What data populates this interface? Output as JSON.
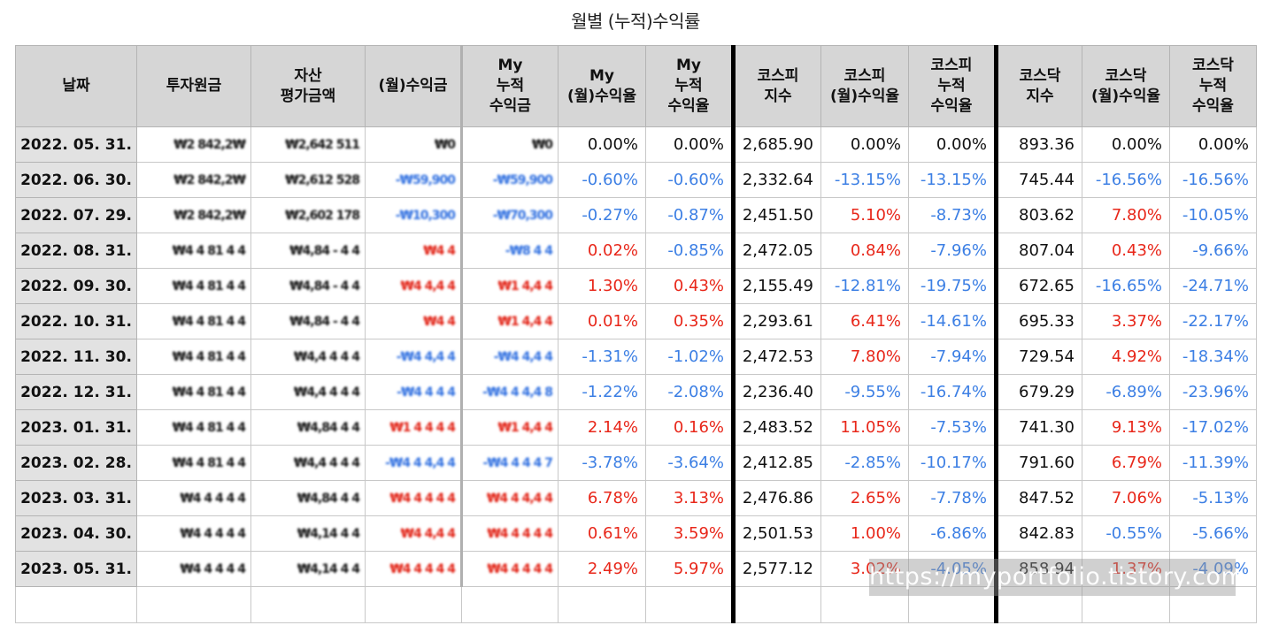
{
  "title": "월별 (누적)수익률",
  "headers": {
    "date": "날짜",
    "principal": "투자원금",
    "asset_value": [
      "자산",
      "평가금액"
    ],
    "monthly_profit": "(월)수익금",
    "my_cum_profit": [
      "My",
      "누적",
      "수익금"
    ],
    "my_monthly_rate": [
      "My",
      "(월)수익율"
    ],
    "my_cum_rate": [
      "My",
      "누적",
      "수익율"
    ],
    "kospi_index": [
      "코스피",
      "지수"
    ],
    "kospi_monthly": [
      "코스피",
      "(월)수익율"
    ],
    "kospi_cum": [
      "코스피",
      "누적",
      "수익율"
    ],
    "kosdaq_index": [
      "코스닥",
      "지수"
    ],
    "kosdaq_monthly": [
      "코스닥",
      "(월)수익율"
    ],
    "kosdaq_cum": [
      "코스닥",
      "누적",
      "수익율"
    ]
  },
  "rows": [
    {
      "date": "2022. 05. 31.",
      "principal": "₩2 842,2₩",
      "asset": "₩2,642 511",
      "profit": "₩0",
      "cum_profit": "₩0",
      "my_monthly": "0.00%",
      "my_cum": "0.00%",
      "kospi": "2,685.90",
      "kospi_m": "0.00%",
      "kospi_c": "0.00%",
      "kosdaq": "893.36",
      "kosdaq_m": "0.00%",
      "kosdaq_c": "0.00%"
    },
    {
      "date": "2022. 06. 30.",
      "principal": "₩2 842,2₩",
      "asset": "₩2,612 528",
      "profit": "-₩59,900",
      "cum_profit": "-₩59,900",
      "my_monthly": "-0.60%",
      "my_cum": "-0.60%",
      "kospi": "2,332.64",
      "kospi_m": "-13.15%",
      "kospi_c": "-13.15%",
      "kosdaq": "745.44",
      "kosdaq_m": "-16.56%",
      "kosdaq_c": "-16.56%"
    },
    {
      "date": "2022. 07. 29.",
      "principal": "₩2 842,2₩",
      "asset": "₩2,602 178",
      "profit": "-₩10,300",
      "cum_profit": "-₩70,300",
      "my_monthly": "-0.27%",
      "my_cum": "-0.87%",
      "kospi": "2,451.50",
      "kospi_m": "5.10%",
      "kospi_c": "-8.73%",
      "kosdaq": "803.62",
      "kosdaq_m": "7.80%",
      "kosdaq_c": "-10.05%"
    },
    {
      "date": "2022. 08. 31.",
      "principal": "₩4 4 81 4 4",
      "asset": "₩4,84 - 4 4",
      "profit": "₩4 4",
      "cum_profit": "-₩8 4 4",
      "my_monthly": "0.02%",
      "my_cum": "-0.85%",
      "kospi": "2,472.05",
      "kospi_m": "0.84%",
      "kospi_c": "-7.96%",
      "kosdaq": "807.04",
      "kosdaq_m": "0.43%",
      "kosdaq_c": "-9.66%"
    },
    {
      "date": "2022. 09. 30.",
      "principal": "₩4 4 81 4 4",
      "asset": "₩4,84 - 4 4",
      "profit": "₩4 4,4 4",
      "cum_profit": "₩1 4,4 4",
      "my_monthly": "1.30%",
      "my_cum": "0.43%",
      "kospi": "2,155.49",
      "kospi_m": "-12.81%",
      "kospi_c": "-19.75%",
      "kosdaq": "672.65",
      "kosdaq_m": "-16.65%",
      "kosdaq_c": "-24.71%"
    },
    {
      "date": "2022. 10. 31.",
      "principal": "₩4 4 81 4 4",
      "asset": "₩4,84 - 4 4",
      "profit": "₩4 4",
      "cum_profit": "₩1 4,4 4",
      "my_monthly": "0.01%",
      "my_cum": "0.35%",
      "kospi": "2,293.61",
      "kospi_m": "6.41%",
      "kospi_c": "-14.61%",
      "kosdaq": "695.33",
      "kosdaq_m": "3.37%",
      "kosdaq_c": "-22.17%"
    },
    {
      "date": "2022. 11. 30.",
      "principal": "₩4 4 81 4 4",
      "asset": "₩4,4 4 4 4",
      "profit": "-₩4 4,4 4",
      "cum_profit": "-₩4 4,4 4",
      "my_monthly": "-1.31%",
      "my_cum": "-1.02%",
      "kospi": "2,472.53",
      "kospi_m": "7.80%",
      "kospi_c": "-7.94%",
      "kosdaq": "729.54",
      "kosdaq_m": "4.92%",
      "kosdaq_c": "-18.34%"
    },
    {
      "date": "2022. 12. 31.",
      "principal": "₩4 4 81 4 4",
      "asset": "₩4,4 4 4 4",
      "profit": "-₩4 4 4 4",
      "cum_profit": "-₩4 4 4,4 8",
      "my_monthly": "-1.22%",
      "my_cum": "-2.08%",
      "kospi": "2,236.40",
      "kospi_m": "-9.55%",
      "kospi_c": "-16.74%",
      "kosdaq": "679.29",
      "kosdaq_m": "-6.89%",
      "kosdaq_c": "-23.96%"
    },
    {
      "date": "2023. 01. 31.",
      "principal": "₩4 4 81 4 4",
      "asset": "₩4,84 4 4",
      "profit": "₩1 4 4 4 4",
      "cum_profit": "₩1 4,4 4",
      "my_monthly": "2.14%",
      "my_cum": "0.16%",
      "kospi": "2,483.52",
      "kospi_m": "11.05%",
      "kospi_c": "-7.53%",
      "kosdaq": "741.30",
      "kosdaq_m": "9.13%",
      "kosdaq_c": "-17.02%"
    },
    {
      "date": "2023. 02. 28.",
      "principal": "₩4 4 81 4 4",
      "asset": "₩4,4 4 4 4",
      "profit": "-₩4 4 4,4 4",
      "cum_profit": "-₩4 4 4 4 7",
      "my_monthly": "-3.78%",
      "my_cum": "-3.64%",
      "kospi": "2,412.85",
      "kospi_m": "-2.85%",
      "kospi_c": "-10.17%",
      "kosdaq": "791.60",
      "kosdaq_m": "6.79%",
      "kosdaq_c": "-11.39%"
    },
    {
      "date": "2023. 03. 31.",
      "principal": "₩4 4 4 4 4",
      "asset": "₩4,84 4 4",
      "profit": "₩4 4 4 4 4",
      "cum_profit": "₩4 4 4,4 4",
      "my_monthly": "6.78%",
      "my_cum": "3.13%",
      "kospi": "2,476.86",
      "kospi_m": "2.65%",
      "kospi_c": "-7.78%",
      "kosdaq": "847.52",
      "kosdaq_m": "7.06%",
      "kosdaq_c": "-5.13%"
    },
    {
      "date": "2023. 04. 30.",
      "principal": "₩4 4 4 4 4",
      "asset": "₩4,14 4 4",
      "profit": "₩4 4,4 4",
      "cum_profit": "₩4 4 4 4 4",
      "my_monthly": "0.61%",
      "my_cum": "3.59%",
      "kospi": "2,501.53",
      "kospi_m": "1.00%",
      "kospi_c": "-6.86%",
      "kosdaq": "842.83",
      "kosdaq_m": "-0.55%",
      "kosdaq_c": "-5.66%"
    },
    {
      "date": "2023. 05. 31.",
      "principal": "₩4 4 4 4 4",
      "asset": "₩4,14 4 4",
      "profit": "₩4 4 4 4 4",
      "cum_profit": "₩4 4 4 4 4",
      "my_monthly": "2.49%",
      "my_cum": "5.97%",
      "kospi": "2,577.12",
      "kospi_m": "3.02%",
      "kospi_c": "-4.05%",
      "kosdaq": "858.94",
      "kosdaq_m": "1.37%",
      "kosdaq_c": "-4.09%"
    }
  ],
  "colors": {
    "positive": "#e8271a",
    "negative": "#3c7fe4",
    "header_bg": "#d6d6d6",
    "date_bg": "#e2e2e2"
  },
  "watermark": "https://myportfolio.tistory.com"
}
